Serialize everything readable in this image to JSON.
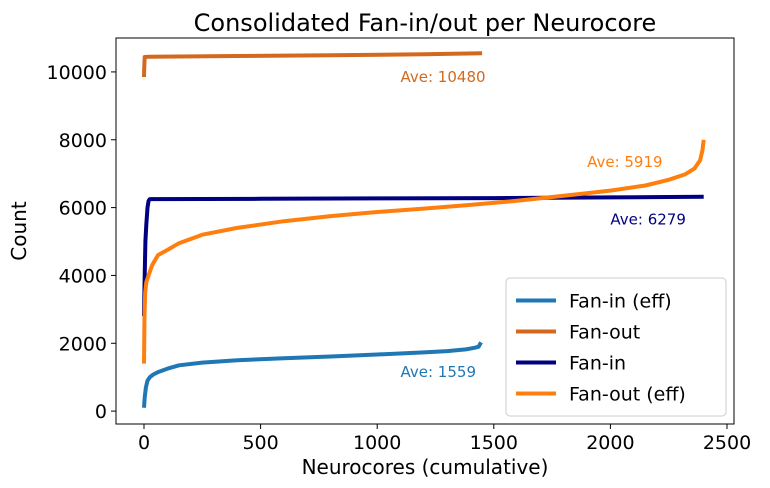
{
  "chart_data": {
    "type": "line",
    "title": "Consolidated Fan-in/out per Neurocore",
    "xlabel": "Neurocores (cumulative)",
    "ylabel": "Count",
    "xlim": [
      -120,
      2530
    ],
    "ylim": [
      -380,
      11000
    ],
    "xticks": [
      0,
      500,
      1000,
      1500,
      2000,
      2500
    ],
    "yticks": [
      0,
      2000,
      4000,
      6000,
      8000,
      10000
    ],
    "grid": false,
    "legend_position": "lower-right",
    "legend_order": [
      "Fan-in (eff)",
      "Fan-out",
      "Fan-in",
      "Fan-out (eff)"
    ],
    "series": [
      {
        "name": "Fan-in (eff)",
        "color": "#1f77b4",
        "x": [
          0,
          3,
          8,
          15,
          25,
          40,
          60,
          100,
          150,
          250,
          400,
          600,
          800,
          1000,
          1200,
          1300,
          1380,
          1420,
          1435,
          1440,
          1445
        ],
        "y": [
          100,
          400,
          700,
          900,
          1000,
          1080,
          1150,
          1250,
          1350,
          1430,
          1500,
          1560,
          1610,
          1670,
          1730,
          1770,
          1820,
          1870,
          1900,
          1960,
          2030
        ]
      },
      {
        "name": "Fan-out",
        "color": "#d2691e",
        "x": [
          0,
          1,
          3,
          20,
          400,
          800,
          1200,
          1450
        ],
        "y": [
          9850,
          10100,
          10440,
          10450,
          10470,
          10490,
          10520,
          10550
        ]
      },
      {
        "name": "Fan-in",
        "color": "#000080",
        "x": [
          0,
          3,
          6,
          10,
          15,
          20,
          25,
          500,
          1000,
          1500,
          2000,
          2400
        ],
        "y": [
          2800,
          4000,
          5000,
          5500,
          6000,
          6200,
          6250,
          6260,
          6270,
          6280,
          6300,
          6320
        ]
      },
      {
        "name": "Fan-out (eff)",
        "color": "#ff7f0e",
        "x": [
          0,
          2,
          5,
          10,
          20,
          35,
          60,
          100,
          150,
          250,
          400,
          600,
          800,
          1000,
          1200,
          1400,
          1600,
          1800,
          2000,
          2150,
          2250,
          2320,
          2360,
          2385,
          2395,
          2400
        ],
        "y": [
          1400,
          2800,
          3500,
          3800,
          4000,
          4300,
          4600,
          4750,
          4950,
          5200,
          5400,
          5600,
          5750,
          5870,
          5970,
          6080,
          6200,
          6350,
          6500,
          6650,
          6820,
          6980,
          7150,
          7400,
          7700,
          8000
        ]
      }
    ],
    "annotations": [
      {
        "text": "Ave: 10480",
        "x": 1100,
        "y": 9700,
        "color": "#d2691e"
      },
      {
        "text": "Ave: 5919",
        "x": 1900,
        "y": 7200,
        "color": "#ff7f0e"
      },
      {
        "text": "Ave: 6279",
        "x": 2000,
        "y": 5500,
        "color": "#000080"
      },
      {
        "text": "Ave: 1559",
        "x": 1100,
        "y": 1000,
        "color": "#1f77b4"
      }
    ]
  }
}
